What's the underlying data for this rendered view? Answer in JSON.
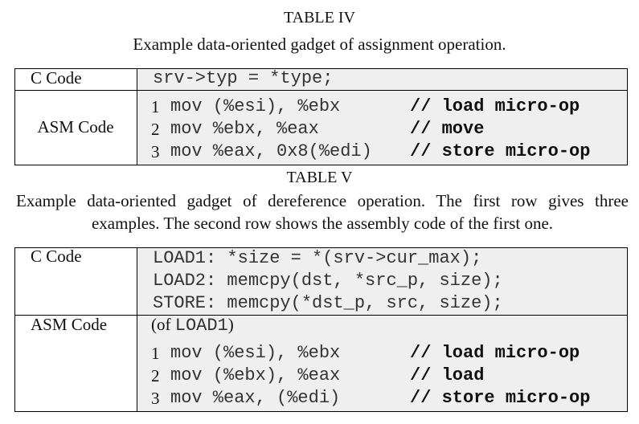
{
  "table_iv": {
    "label": "TABLE IV",
    "caption": "Example data-oriented gadget of assignment operation.",
    "rows": [
      {
        "header": "C Code",
        "lines": [
          {
            "code": "srv->typ = *type;"
          }
        ]
      },
      {
        "header": "ASM Code",
        "lines": [
          {
            "num": "1",
            "code": "mov (%esi), %ebx",
            "comment": "// load micro-op"
          },
          {
            "num": "2",
            "code": "mov %ebx, %eax",
            "comment": "// move"
          },
          {
            "num": "3",
            "code": "mov %eax, 0x8(%edi)",
            "comment": "// store micro-op"
          }
        ]
      }
    ]
  },
  "table_v": {
    "label": "TABLE V",
    "caption": "Example data-oriented gadget of dereference operation. The first row gives three examples. The second row shows the assembly code of the first one.",
    "rows": [
      {
        "header": "C Code",
        "lines": [
          {
            "code": "LOAD1: *size = *(srv->cur_max);"
          },
          {
            "code": "LOAD2: memcpy(dst, *src_p, size);"
          },
          {
            "code": "STORE: memcpy(*dst_p, src, size);"
          }
        ]
      },
      {
        "header": "ASM Code",
        "note": {
          "prefix": "(of",
          "code": "LOAD1",
          "suffix": ")"
        },
        "lines": [
          {
            "num": "1",
            "code": "mov (%esi), %ebx",
            "comment": "// load micro-op"
          },
          {
            "num": "2",
            "code": "mov (%ebx), %eax",
            "comment": "// load"
          },
          {
            "num": "3",
            "code": "mov %eax, (%edi)",
            "comment": "// store micro-op"
          }
        ]
      }
    ]
  }
}
